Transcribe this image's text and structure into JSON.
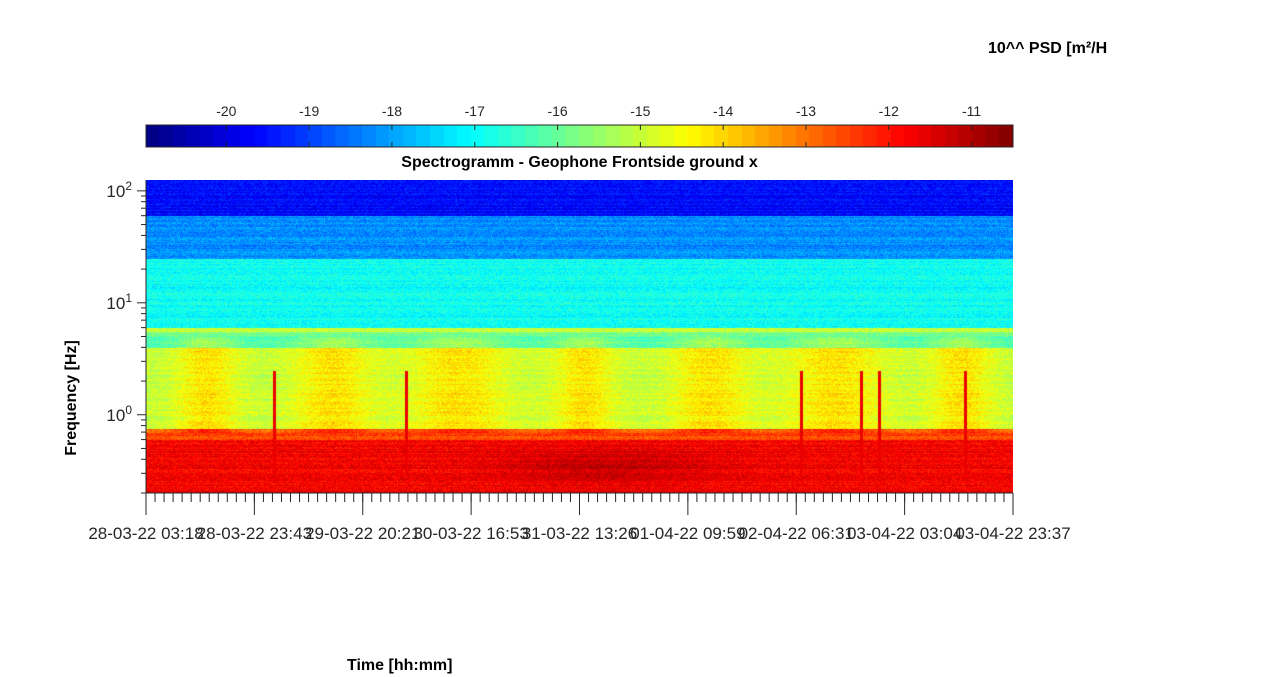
{
  "colorbar": {
    "title": "10^^ PSD [m²/H",
    "ticks": [
      "-20",
      "-19",
      "-18",
      "-17",
      "-16",
      "-15",
      "-14",
      "-13",
      "-12",
      "-11"
    ],
    "range": [
      -20.97,
      -10.5
    ],
    "colormap": "jet"
  },
  "chart_data": {
    "type": "heatmap",
    "title": "Spectrogramm - Geophone Frontside ground x",
    "xlabel": "Time [hh:mm]",
    "ylabel": "Frequency [Hz]",
    "yscale": "log",
    "ylim": [
      0.2,
      125
    ],
    "x_tick_labels": [
      "28-03-22 03:18",
      "28-03-22 23:43",
      "29-03-22 20:21",
      "30-03-22 16:53",
      "31-03-22 13:26",
      "01-04-22 09:59",
      "02-04-22 06:31",
      "03-04-22 03:04",
      "03-04-22 23:37"
    ],
    "y_ticks": [
      {
        "value": 1,
        "base": "10",
        "exp": "0"
      },
      {
        "value": 10,
        "base": "10",
        "exp": "1"
      },
      {
        "value": 100,
        "base": "10",
        "exp": "2"
      }
    ],
    "colorbar_range_log10_psd": [
      -20.97,
      -10.5
    ],
    "frequency_bands": [
      {
        "from_hz": 0.2,
        "to_hz": 0.6,
        "log10_psd": -11.7
      },
      {
        "from_hz": 0.6,
        "to_hz": 0.75,
        "log10_psd": -12.5
      },
      {
        "from_hz": 0.75,
        "to_hz": 4,
        "log10_psd": -14.6
      },
      {
        "from_hz": 4,
        "to_hz": 5.5,
        "log10_psd": -15.9
      },
      {
        "from_hz": 5.5,
        "to_hz": 6,
        "log10_psd": -15.0
      },
      {
        "from_hz": 6,
        "to_hz": 25,
        "log10_psd": -16.9
      },
      {
        "from_hz": 25,
        "to_hz": 60,
        "log10_psd": -18.2
      },
      {
        "from_hz": 60,
        "to_hz": 125,
        "log10_psd": -19.6
      }
    ],
    "grid": false
  }
}
